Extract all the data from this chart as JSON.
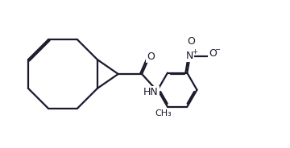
{
  "bg_color": "#ffffff",
  "line_color": "#1a1a2e",
  "dbo": 0.055,
  "lw": 1.6,
  "fs": 9,
  "xlim": [
    0,
    10
  ],
  "ylim": [
    0,
    5.1
  ],
  "figsize": [
    3.6,
    1.84
  ],
  "dpi": 100
}
